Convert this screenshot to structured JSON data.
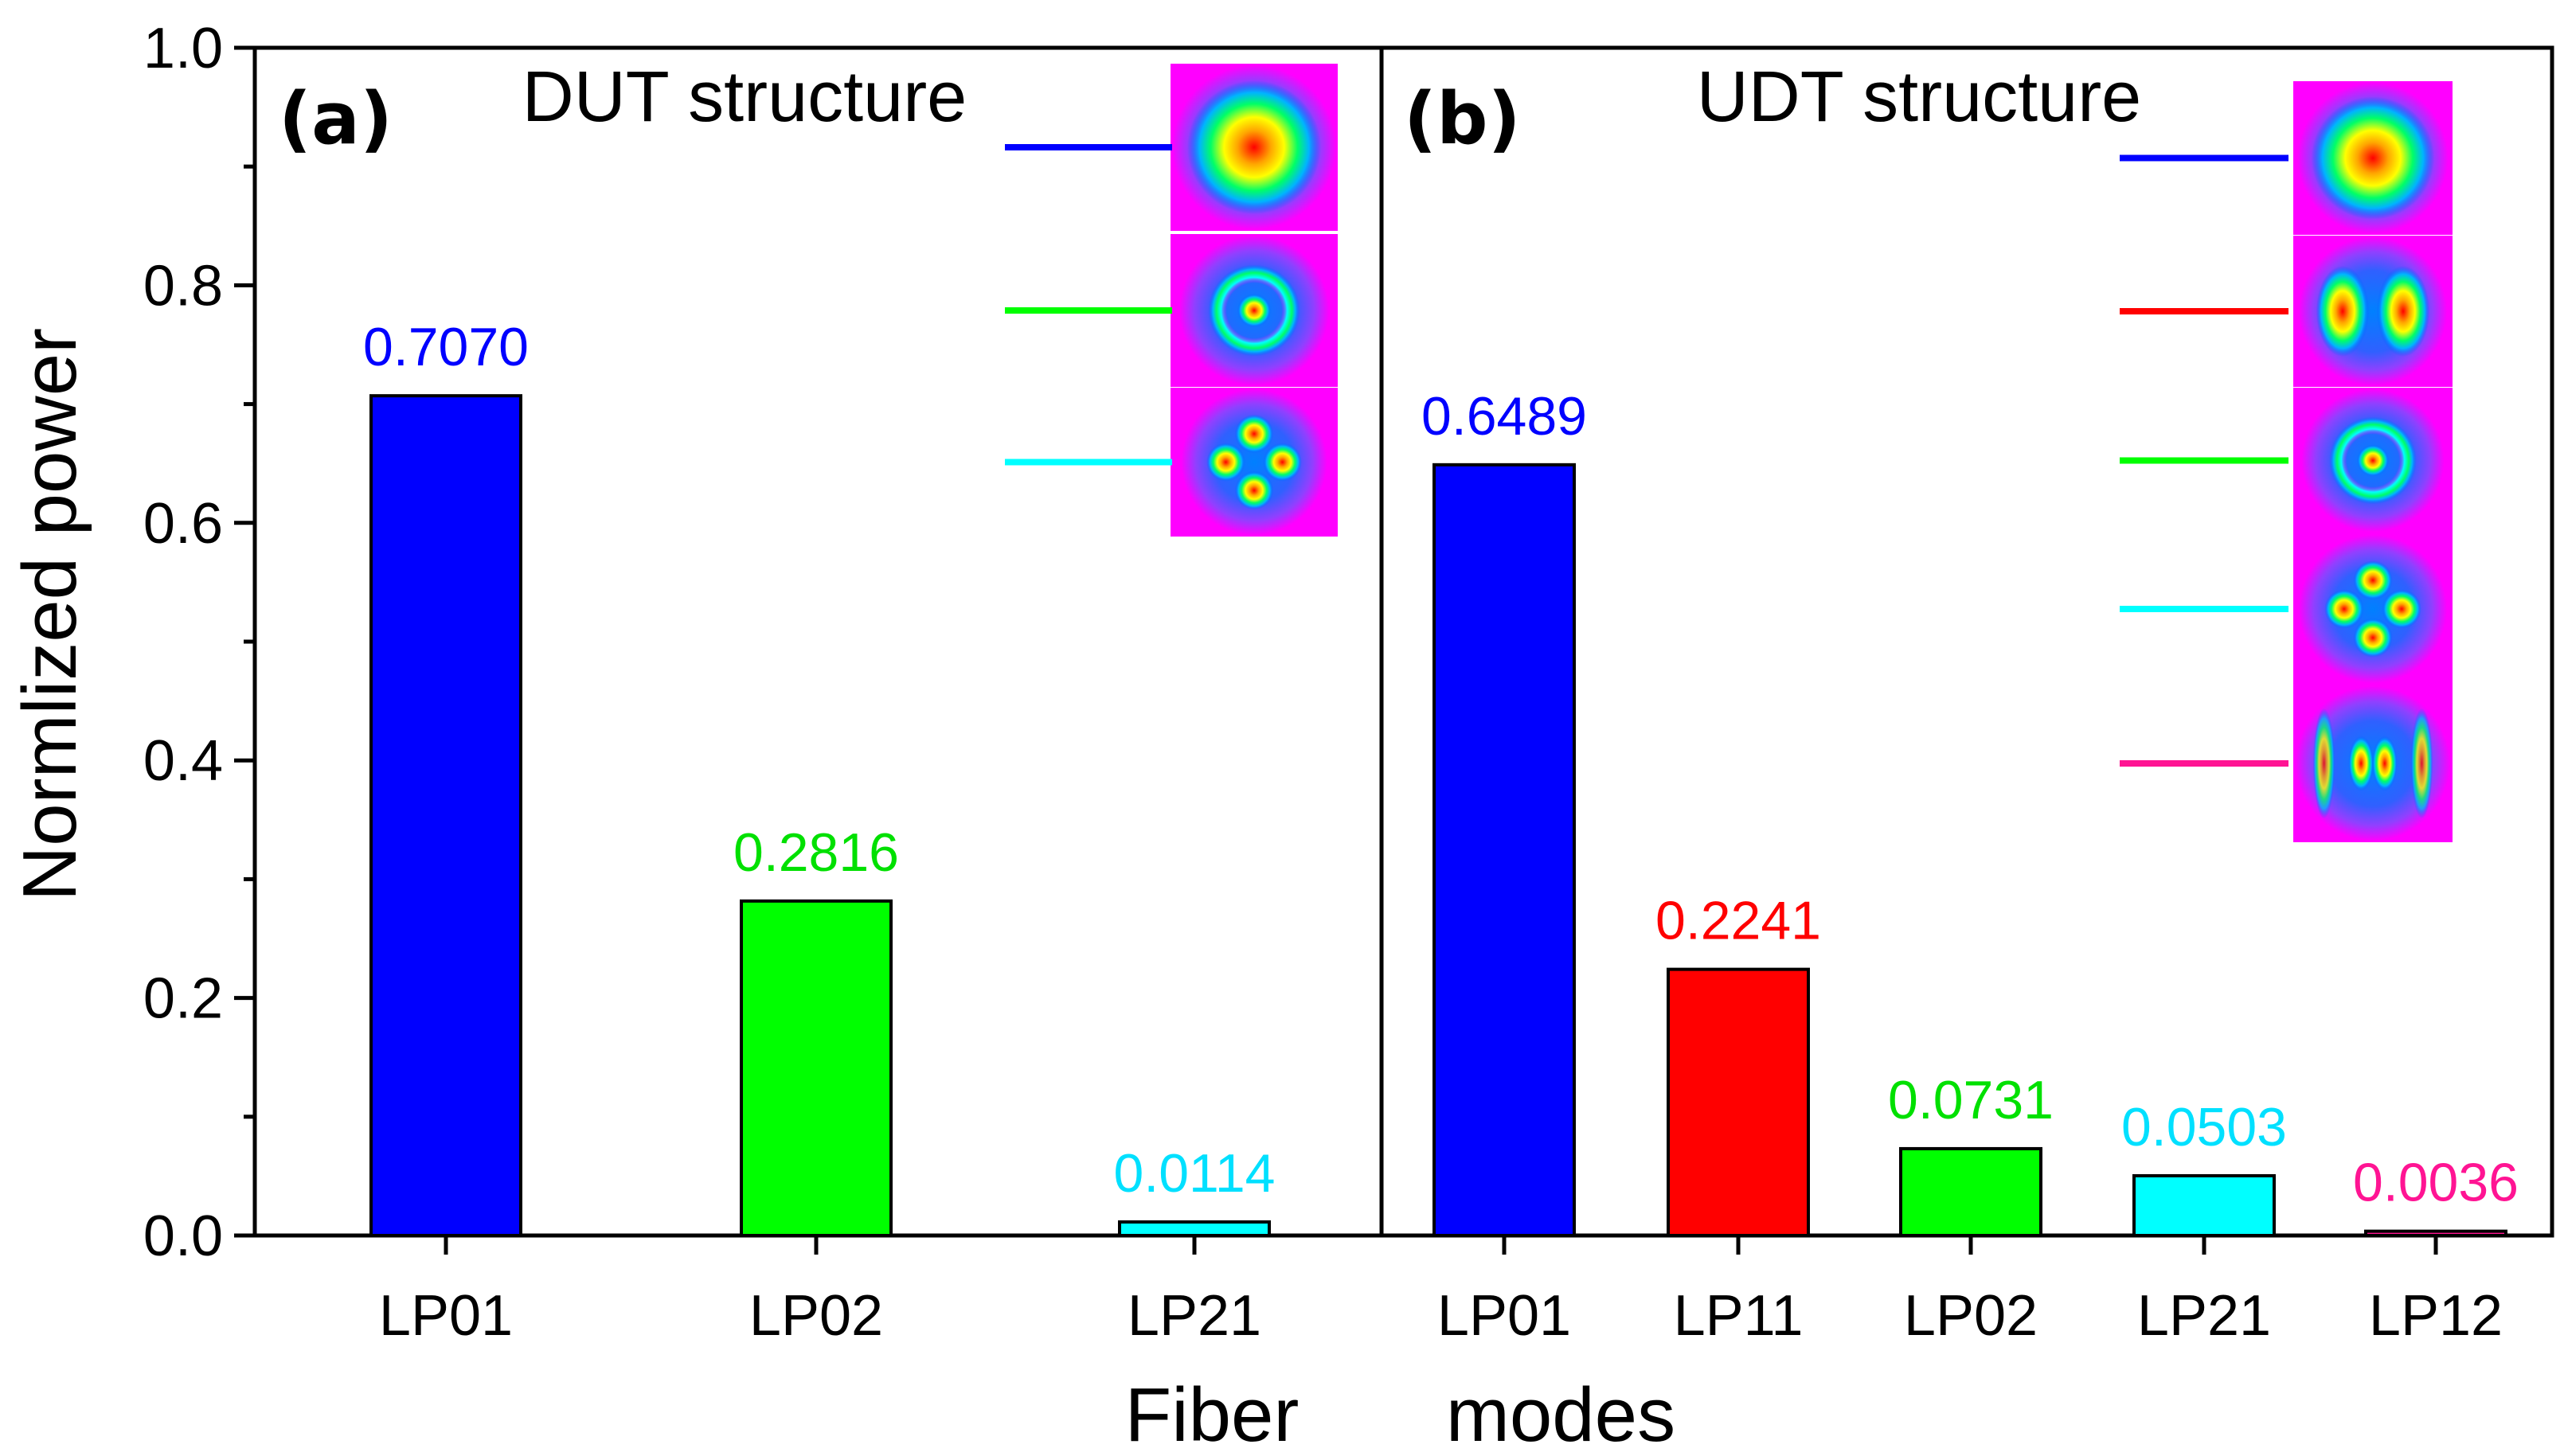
{
  "chart_data": {
    "type": "bar",
    "ylabel": "Normlized power",
    "xlabel": [
      "Fiber",
      "modes"
    ],
    "ylim": [
      0,
      1.0
    ],
    "yticks": [
      "0.0",
      "0.2",
      "0.4",
      "0.6",
      "0.8",
      "1.0"
    ],
    "grid": false,
    "panels": [
      {
        "letter": "(a)",
        "title": "DUT structure",
        "categories": [
          "LP01",
          "LP02",
          "LP21"
        ],
        "values": [
          0.707,
          0.2816,
          0.0114
        ],
        "value_labels": [
          "0.7070",
          "0.2816",
          "0.0114"
        ],
        "colors": [
          "#0000ff",
          "#00ff00",
          "#00ffff"
        ],
        "label_colors": [
          "#0000ff",
          "#00e000",
          "#00e0ff"
        ],
        "mode_images": [
          "LP01",
          "LP02",
          "LP21"
        ],
        "mode_line_colors": [
          "#0000ff",
          "#00ff00",
          "#00ffff"
        ]
      },
      {
        "letter": "(b)",
        "title": "UDT structure",
        "categories": [
          "LP01",
          "LP11",
          "LP02",
          "LP21",
          "LP12"
        ],
        "values": [
          0.6489,
          0.2241,
          0.0731,
          0.0503,
          0.0036
        ],
        "value_labels": [
          "0.6489",
          "0.2241",
          "0.0731",
          "0.0503",
          "0.0036"
        ],
        "colors": [
          "#0000ff",
          "#ff0000",
          "#00ff00",
          "#00ffff",
          "#ff1493"
        ],
        "label_colors": [
          "#0000ff",
          "#ff0000",
          "#00e000",
          "#00e0ff",
          "#ff1493"
        ],
        "mode_images": [
          "LP01",
          "LP11",
          "LP02",
          "LP21",
          "LP12"
        ],
        "mode_line_colors": [
          "#0000ff",
          "#ff0000",
          "#00ff00",
          "#00ffff",
          "#ff1493"
        ]
      }
    ]
  }
}
